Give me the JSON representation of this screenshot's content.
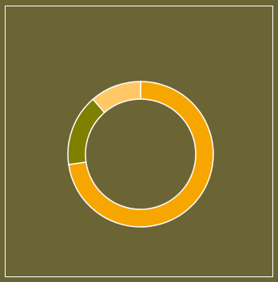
{
  "chart_data": {
    "type": "pie",
    "subtype": "donut",
    "title": "",
    "legend": "none",
    "slices": [
      {
        "value": 64,
        "color": "#f7a600"
      },
      {
        "value": 14,
        "color": "#7f7f00"
      },
      {
        "value": 10,
        "color": "#ffc766"
      }
    ],
    "start": "top",
    "direction": "clockwise",
    "outline_color": "#ffffff",
    "background": "#6b6536"
  }
}
